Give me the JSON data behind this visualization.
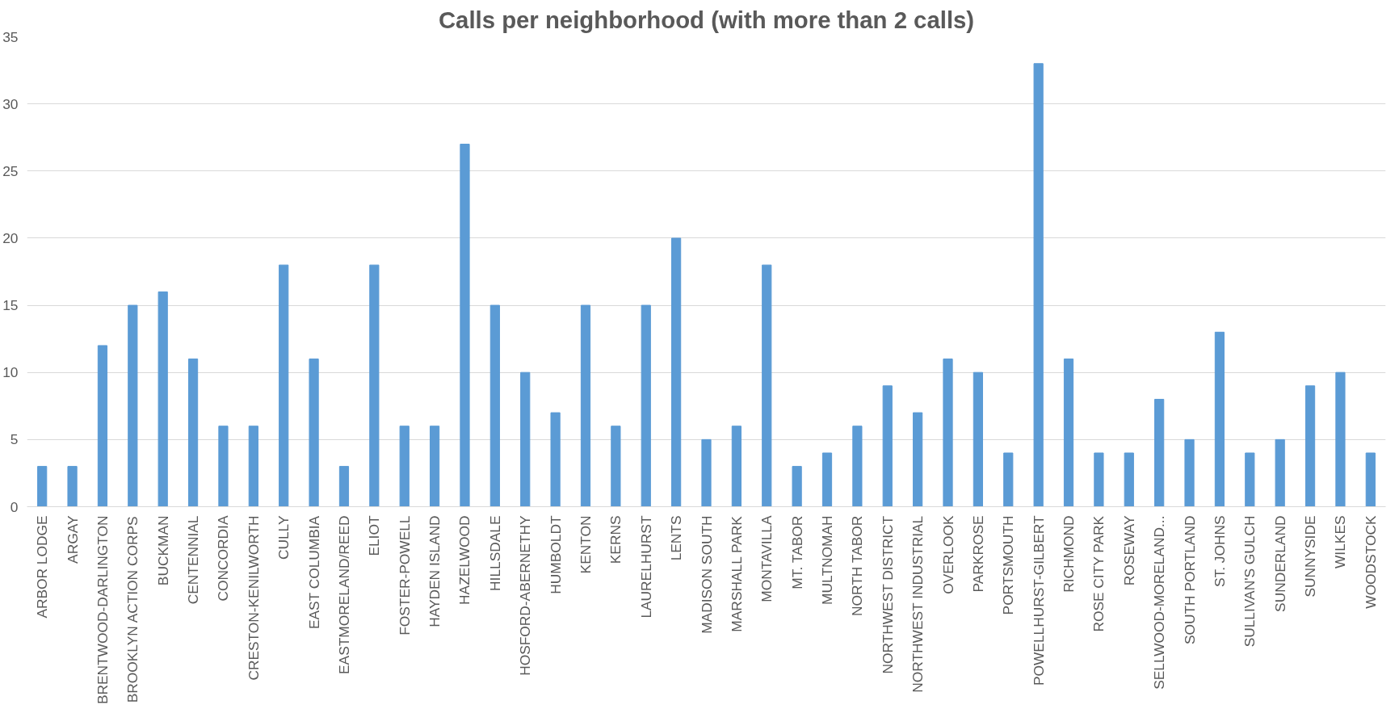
{
  "chart_data": {
    "type": "bar",
    "title": "Calls per neighborhood (with more than 2 calls)",
    "categories": [
      "ARBOR LODGE",
      "ARGAY",
      "BRENTWOOD-DARLINGTON",
      "BROOKLYN ACTION CORPS",
      "BUCKMAN",
      "CENTENNIAL",
      "CONCORDIA",
      "CRESTON-KENILWORTH",
      "CULLY",
      "EAST COLUMBIA",
      "EASTMORELAND/REED",
      "ELIOT",
      "FOSTER-POWELL",
      "HAYDEN ISLAND",
      "HAZELWOOD",
      "HILLSDALE",
      "HOSFORD-ABERNETHY",
      "HUMBOLDT",
      "KENTON",
      "KERNS",
      "LAURELHURST",
      "LENTS",
      "MADISON SOUTH",
      "MARSHALL PARK",
      "MONTAVILLA",
      "MT. TABOR",
      "MULTNOMAH",
      "NORTH TABOR",
      "NORTHWEST DISTRICT",
      "NORTHWEST INDUSTRIAL",
      "OVERLOOK",
      "PARKROSE",
      "PORTSMOUTH",
      "POWELLHURST-GILBERT",
      "RICHMOND",
      "ROSE CITY PARK",
      "ROSEWAY",
      "SELLWOOD-MORELAND...",
      "SOUTH PORTLAND",
      "ST. JOHNS",
      "SULLIVAN'S GULCH",
      "SUNDERLAND",
      "SUNNYSIDE",
      "WILKES",
      "WOODSTOCK"
    ],
    "values": [
      3,
      3,
      12,
      15,
      16,
      11,
      6,
      6,
      18,
      11,
      3,
      18,
      6,
      6,
      27,
      15,
      10,
      7,
      15,
      6,
      15,
      20,
      5,
      6,
      18,
      3,
      4,
      6,
      9,
      7,
      11,
      10,
      4,
      33,
      11,
      4,
      4,
      8,
      5,
      13,
      4,
      5,
      9,
      10,
      4
    ],
    "color": "#5b9bd5",
    "ylim": [
      0,
      35
    ],
    "yticks": [
      0,
      5,
      10,
      15,
      20,
      25,
      30,
      35
    ],
    "grid": "y"
  }
}
